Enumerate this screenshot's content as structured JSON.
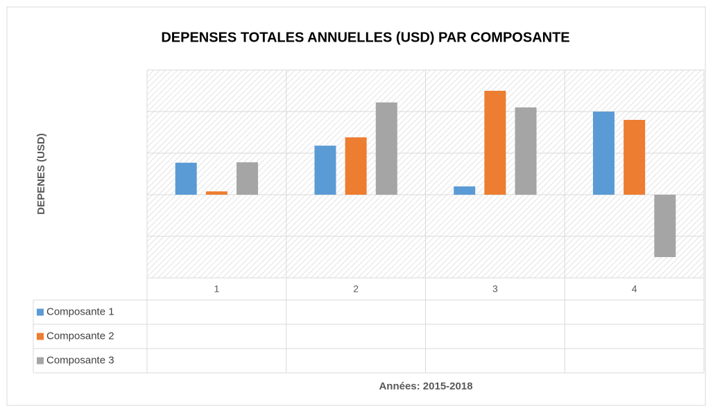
{
  "chart_data": {
    "type": "bar",
    "title": "DEPENSES TOTALES ANNUELLES (USD) PAR COMPOSANTE",
    "y_label": "DEPENES (USD)",
    "x_label": "Années: 2015-2018",
    "categories": [
      "1",
      "2",
      "3",
      "4"
    ],
    "series": [
      {
        "name": "Composante 1",
        "color": "#5b9bd5",
        "values": [
          0.77,
          1.18,
          0.2,
          2.0
        ]
      },
      {
        "name": "Composante 2",
        "color": "#ed7d31",
        "values": [
          0.08,
          1.38,
          2.5,
          1.8
        ]
      },
      {
        "name": "Composante 3",
        "color": "#a5a5a5",
        "values": [
          0.78,
          2.22,
          2.1,
          -1.5
        ]
      }
    ],
    "ylim": [
      -2,
      3
    ],
    "yticks": [
      -2,
      -1,
      0,
      1,
      2,
      3
    ],
    "grid": true,
    "data_table": true
  }
}
